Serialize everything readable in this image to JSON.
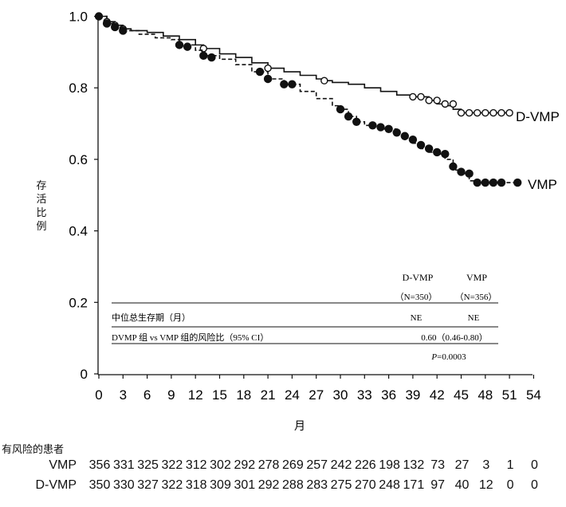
{
  "chart_data": {
    "type": "line",
    "title": "",
    "xlabel": "月",
    "ylabel": "存活比例",
    "xlim": [
      0,
      54
    ],
    "ylim": [
      0,
      1.0
    ],
    "x_ticks": [
      0,
      3,
      6,
      9,
      12,
      15,
      18,
      21,
      24,
      27,
      30,
      33,
      36,
      39,
      42,
      45,
      48,
      51,
      54
    ],
    "y_ticks": [
      "0",
      "0.2",
      "0.4",
      "0.6",
      "0.8",
      "1.0"
    ],
    "series": [
      {
        "name": "D-VMP",
        "style": "solid",
        "marker": "open-circle",
        "color": "#111111",
        "x": [
          0,
          1,
          2,
          3,
          4,
          6,
          8,
          10,
          12,
          13,
          15,
          17,
          19,
          21,
          23,
          25,
          27,
          28,
          29,
          31,
          33,
          35,
          37,
          39,
          41,
          42,
          43,
          44,
          45,
          46,
          47,
          48,
          49,
          50,
          51
        ],
        "y": [
          1.0,
          0.985,
          0.975,
          0.965,
          0.96,
          0.955,
          0.945,
          0.935,
          0.92,
          0.91,
          0.895,
          0.885,
          0.87,
          0.855,
          0.845,
          0.835,
          0.825,
          0.82,
          0.815,
          0.81,
          0.8,
          0.79,
          0.78,
          0.775,
          0.765,
          0.755,
          0.75,
          0.74,
          0.73,
          0.73,
          0.73,
          0.73,
          0.73,
          0.73,
          0.73
        ],
        "markers_x": [
          0,
          1,
          2,
          3,
          13,
          21,
          28,
          39,
          40,
          41,
          42,
          43,
          44,
          45,
          46,
          47,
          48,
          49,
          50,
          51
        ],
        "markers_y": [
          1.0,
          0.985,
          0.975,
          0.965,
          0.91,
          0.855,
          0.82,
          0.775,
          0.775,
          0.765,
          0.765,
          0.755,
          0.755,
          0.73,
          0.73,
          0.73,
          0.73,
          0.73,
          0.73,
          0.73
        ],
        "end_label": "D-VMP"
      },
      {
        "name": "VMP",
        "style": "dashed",
        "marker": "filled-circle",
        "color": "#111111",
        "x": [
          0,
          1,
          2,
          3,
          5,
          7,
          9,
          10,
          12,
          13,
          15,
          17,
          19,
          21,
          23,
          25,
          27,
          29,
          30,
          31,
          32,
          33,
          35,
          37,
          38,
          39,
          40,
          41,
          42,
          43,
          44,
          45,
          46,
          47,
          48,
          49,
          50,
          51,
          52
        ],
        "y": [
          1.0,
          0.98,
          0.97,
          0.96,
          0.95,
          0.94,
          0.935,
          0.92,
          0.905,
          0.89,
          0.88,
          0.865,
          0.845,
          0.825,
          0.81,
          0.79,
          0.77,
          0.75,
          0.74,
          0.72,
          0.705,
          0.695,
          0.685,
          0.67,
          0.66,
          0.645,
          0.63,
          0.62,
          0.615,
          0.6,
          0.57,
          0.56,
          0.54,
          0.535,
          0.535,
          0.535,
          0.535,
          0.535,
          0.535
        ],
        "markers_x": [
          0,
          1,
          2,
          3,
          10,
          11,
          13,
          14,
          20,
          21,
          23,
          24,
          30,
          31,
          32,
          34,
          35,
          36,
          37,
          38,
          39,
          40,
          41,
          42,
          43,
          44,
          45,
          46,
          47,
          48,
          49,
          50,
          52
        ],
        "markers_y": [
          1.0,
          0.98,
          0.97,
          0.96,
          0.92,
          0.915,
          0.89,
          0.885,
          0.845,
          0.825,
          0.81,
          0.81,
          0.74,
          0.72,
          0.705,
          0.695,
          0.69,
          0.685,
          0.675,
          0.665,
          0.655,
          0.64,
          0.63,
          0.62,
          0.615,
          0.58,
          0.565,
          0.56,
          0.535,
          0.535,
          0.535,
          0.535,
          0.535
        ],
        "end_label": "VMP"
      }
    ],
    "inset_table": {
      "col_headers": [
        "D-VMP",
        "VMP"
      ],
      "col_ns": [
        "（N=350）",
        "（N=356）"
      ],
      "rows": [
        {
          "label": "中位总生存期（月）",
          "dvmp": "NE",
          "vmp": "NE"
        },
        {
          "label": "DVMP 组 vs VMP 组的风险比（95% CI）",
          "hr": "0.60（0.46-0.80）"
        }
      ],
      "p_value_prefix": "P",
      "p_value": "=0.0003"
    }
  },
  "risk_table": {
    "title": "有风险的患者",
    "rows": [
      {
        "label": "VMP",
        "values": [
          "356",
          "331",
          "325",
          "322",
          "312",
          "302",
          "292",
          "278",
          "269",
          "257",
          "242",
          "226",
          "198",
          "132",
          "73",
          "27",
          "3",
          "1",
          "0"
        ]
      },
      {
        "label": "D-VMP",
        "values": [
          "350",
          "330",
          "327",
          "322",
          "318",
          "309",
          "301",
          "292",
          "288",
          "283",
          "275",
          "270",
          "248",
          "171",
          "97",
          "40",
          "12",
          "0",
          "0"
        ]
      }
    ]
  }
}
